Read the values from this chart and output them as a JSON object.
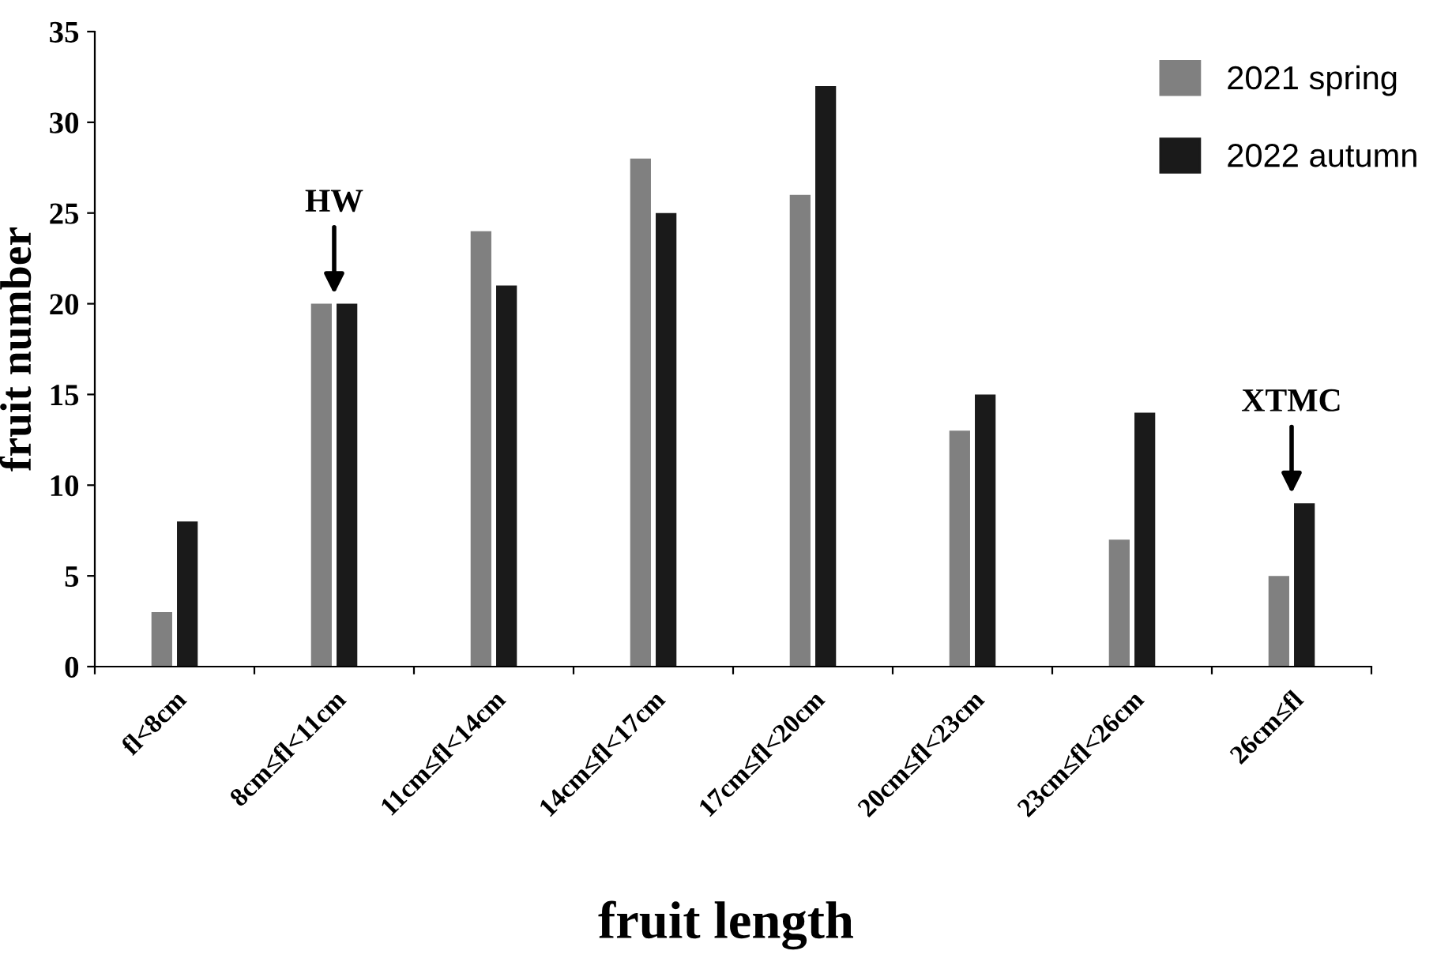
{
  "chart_data": {
    "type": "bar",
    "xlabel": "fruit length",
    "ylabel": "fruit number",
    "categories": [
      "fl<8cm",
      "8cm≤fl<11cm",
      "11cm≤fl<14cm",
      "14cm≤fl<17cm",
      "17cm≤fl<20cm",
      "20cm≤fl<23cm",
      "23cm≤fl<26cm",
      "26cm≤fl"
    ],
    "series": [
      {
        "name": "2021 spring",
        "color": "#808080",
        "values": [
          3,
          20,
          24,
          28,
          26,
          13,
          7,
          5
        ]
      },
      {
        "name": "2022 autumn",
        "color": "#1a1a1a",
        "values": [
          8,
          20,
          21,
          25,
          32,
          15,
          14,
          9
        ]
      }
    ],
    "ylim": [
      0,
      35
    ],
    "yticks": [
      0,
      5,
      10,
      15,
      20,
      25,
      30,
      35
    ],
    "grid": false,
    "legend": "top right",
    "annotations": [
      {
        "text": "HW",
        "x": "8cm≤fl<11cm",
        "y": 20
      },
      {
        "text": "XTMC",
        "x": "26cm≤fl",
        "y": 9
      }
    ]
  }
}
